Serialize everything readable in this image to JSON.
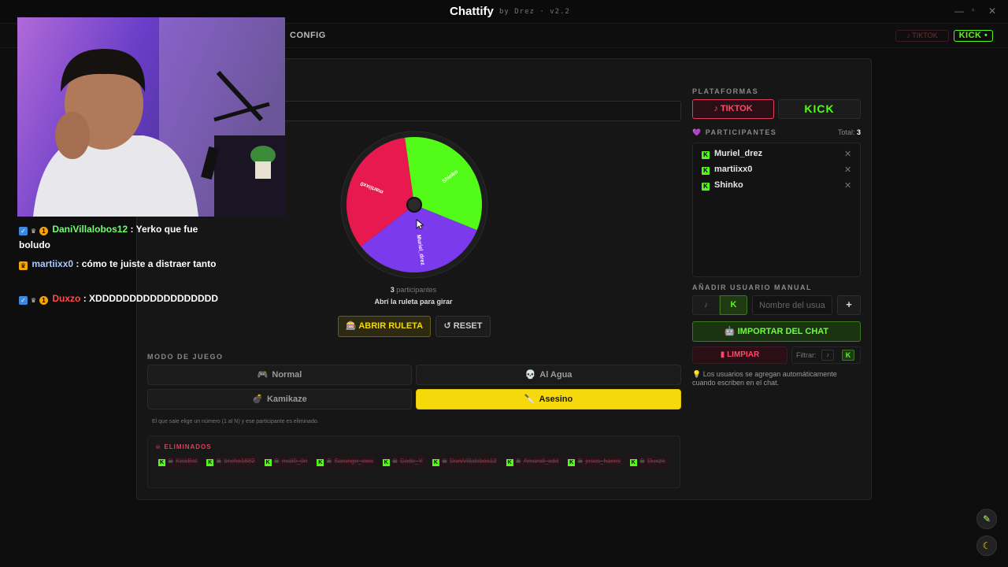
{
  "window": {
    "title": "Chattify",
    "subtitle": "by Drez · v2.2",
    "minimize": "—",
    "maximize": "▫",
    "close": "✕"
  },
  "nav": {
    "config": "CONFIG",
    "tiktok": "♪ TIKTOK",
    "kick": "KICK •"
  },
  "wheel": {
    "segments": [
      {
        "label": "Shinko",
        "color": "#53fc18"
      },
      {
        "label": "Muriel_drez",
        "color": "#7c3aed"
      },
      {
        "label": "martiixx0",
        "color": "#e8194f"
      }
    ],
    "count": "3",
    "count_label": "participantes",
    "hint": "Abrí la ruleta para girar"
  },
  "buttons": {
    "abrir": "ABRIR RULETA",
    "reset": "↺ RESET"
  },
  "modo": {
    "label": "MODO DE JUEGO",
    "options": [
      {
        "icon": "🎮",
        "label": "Normal"
      },
      {
        "icon": "💀",
        "label": "Al Agua"
      },
      {
        "icon": "💣",
        "label": "Kamikaze"
      },
      {
        "icon": "🔪",
        "label": "Asesino"
      }
    ],
    "active": "Asesino",
    "description": "El que sale elige un número (1 al N) y ese participante es eliminado."
  },
  "eliminados": {
    "title": "☠ ELIMINADOS",
    "items": [
      "KickBot",
      "tincho1882",
      "mali0_0n",
      "Sarango_owo",
      "Code_Y",
      "DaniVillalobos12",
      "Amaroll_xdd",
      "jesus_haces",
      "Duxzo"
    ]
  },
  "right": {
    "plataformas_label": "PLATAFORMAS",
    "tiktok": "♪ TIKTOK",
    "kick": "KICK",
    "participantes_label": "PARTICIPANTES",
    "total_label": "Total:",
    "total": "3",
    "participants": [
      "Muriel_drez",
      "martiixx0",
      "Shinko"
    ],
    "remove": "✕",
    "add_label": "AÑADIR USUARIO MANUAL",
    "seg_tiktok": "♪",
    "seg_kick": "K",
    "input_placeholder": "Nombre del usuario",
    "add": "+",
    "import": "IMPORTAR DEL CHAT",
    "limpiar": "LIMPIAR",
    "filtrar": "Filtrar:",
    "filter_tiktok": "♪",
    "filter_kick": "K",
    "info": "💡 Los usuarios se agregan automáticamente cuando escriben en el chat."
  },
  "chat": [
    {
      "user": "DaniVillalobos12",
      "color": "#6dff6d",
      "text": ": Yerko que fue boludo"
    },
    {
      "user": "martiixx0",
      "color": "#a8c8ff",
      "text": ": cómo te juiste a distraer tanto"
    },
    {
      "user": "Duxzo",
      "color": "#ff4a4a",
      "text": ": XDDDDDDDDDDDDDDDDDD"
    }
  ]
}
